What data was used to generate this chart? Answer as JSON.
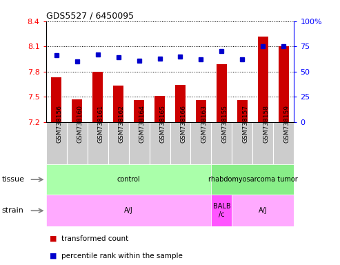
{
  "title": "GDS5527 / 6450095",
  "samples": [
    "GSM738156",
    "GSM738160",
    "GSM738161",
    "GSM738162",
    "GSM738164",
    "GSM738165",
    "GSM738166",
    "GSM738163",
    "GSM738155",
    "GSM738157",
    "GSM738158",
    "GSM738159"
  ],
  "red_values": [
    7.73,
    7.47,
    7.8,
    7.63,
    7.46,
    7.51,
    7.64,
    7.46,
    7.89,
    7.46,
    8.22,
    8.1
  ],
  "blue_values": [
    66,
    60,
    67,
    64,
    61,
    63,
    65,
    62,
    70,
    62,
    75,
    75
  ],
  "ymin": 7.2,
  "ymax": 8.4,
  "y2min": 0,
  "y2max": 100,
  "yticks": [
    7.2,
    7.5,
    7.8,
    8.1,
    8.4
  ],
  "y2ticks": [
    0,
    25,
    50,
    75,
    100
  ],
  "ytick_labels": [
    "7.2",
    "7.5",
    "7.8",
    "8.1",
    "8.4"
  ],
  "y2tick_labels": [
    "0",
    "25",
    "50",
    "75",
    "100%"
  ],
  "bar_color": "#cc0000",
  "dot_color": "#0000cc",
  "bar_bottom": 7.2,
  "tissue_groups": [
    {
      "label": "control",
      "start": 0,
      "end": 8,
      "color": "#aaffaa"
    },
    {
      "label": "rhabdomyosarcoma tumor",
      "start": 8,
      "end": 12,
      "color": "#88ee88"
    }
  ],
  "strain_groups": [
    {
      "label": "A/J",
      "start": 0,
      "end": 8,
      "color": "#ffaaff"
    },
    {
      "label": "BALB\n/c",
      "start": 8,
      "end": 9,
      "color": "#ff55ff"
    },
    {
      "label": "A/J",
      "start": 9,
      "end": 12,
      "color": "#ffaaff"
    }
  ],
  "legend_items": [
    {
      "color": "#cc0000",
      "label": "transformed count"
    },
    {
      "color": "#0000cc",
      "label": "percentile rank within the sample"
    }
  ],
  "left_label_color": "red",
  "right_label_color": "blue",
  "xlabel_bg_color": "#cccccc",
  "tissue_label_color": "gray",
  "strain_label_color": "gray"
}
